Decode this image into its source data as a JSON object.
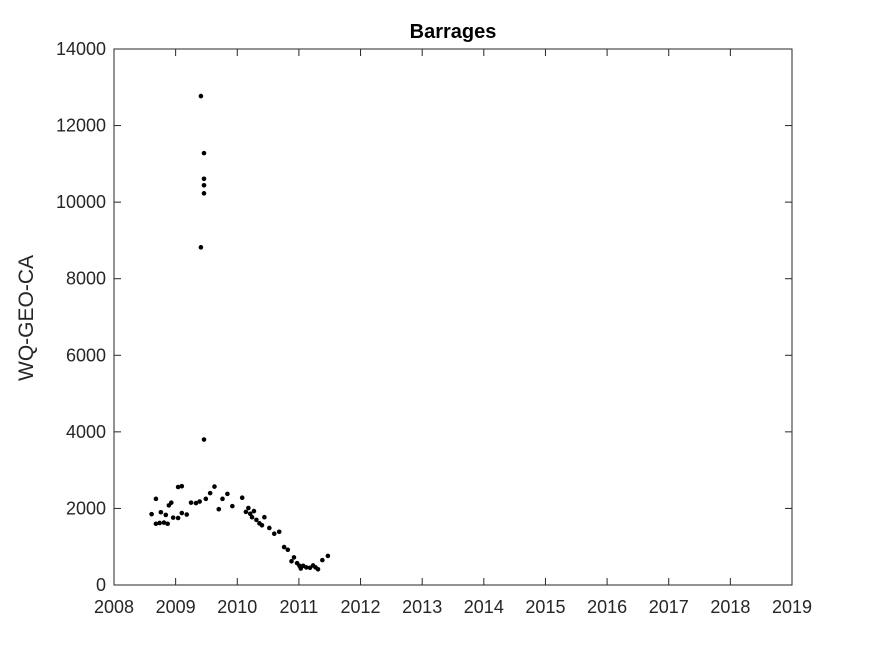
{
  "chart_data": {
    "type": "scatter",
    "title": "Barrages",
    "xlabel": "",
    "ylabel": "WQ-GEO-CA",
    "xlim": [
      2008,
      2019
    ],
    "ylim": [
      0,
      14000
    ],
    "x_ticks": [
      "2008",
      "2009",
      "2010",
      "2011",
      "2012",
      "2013",
      "2014",
      "2015",
      "2016",
      "2017",
      "2018",
      "2019"
    ],
    "y_ticks": [
      "0",
      "2000",
      "4000",
      "6000",
      "8000",
      "10000",
      "12000",
      "14000"
    ],
    "grid": false,
    "legend": "none",
    "marker_color": "#000000",
    "axes_color": "#262626",
    "series": [
      {
        "points": [
          [
            2008.61,
            1850
          ],
          [
            2008.68,
            2250
          ],
          [
            2008.68,
            1600
          ],
          [
            2008.74,
            1620
          ],
          [
            2008.76,
            1900
          ],
          [
            2008.81,
            1630
          ],
          [
            2008.84,
            1830
          ],
          [
            2008.87,
            1600
          ],
          [
            2008.89,
            2080
          ],
          [
            2008.93,
            2150
          ],
          [
            2008.96,
            1760
          ],
          [
            2009.04,
            1750
          ],
          [
            2009.04,
            2560
          ],
          [
            2009.1,
            2580
          ],
          [
            2009.1,
            1880
          ],
          [
            2009.18,
            1840
          ],
          [
            2009.25,
            2150
          ],
          [
            2009.33,
            2140
          ],
          [
            2009.39,
            2180
          ],
          [
            2009.41,
            12770
          ],
          [
            2009.41,
            8820
          ],
          [
            2009.46,
            11280
          ],
          [
            2009.46,
            10610
          ],
          [
            2009.46,
            10440
          ],
          [
            2009.46,
            10230
          ],
          [
            2009.46,
            3800
          ],
          [
            2009.49,
            2250
          ],
          [
            2009.56,
            2400
          ],
          [
            2009.63,
            2570
          ],
          [
            2009.7,
            1980
          ],
          [
            2009.76,
            2250
          ],
          [
            2009.84,
            2380
          ],
          [
            2009.92,
            2060
          ],
          [
            2010.08,
            2280
          ],
          [
            2010.14,
            1910
          ],
          [
            2010.18,
            2010
          ],
          [
            2010.21,
            1860
          ],
          [
            2010.24,
            1770
          ],
          [
            2010.27,
            1930
          ],
          [
            2010.31,
            1700
          ],
          [
            2010.36,
            1610
          ],
          [
            2010.4,
            1560
          ],
          [
            2010.44,
            1770
          ],
          [
            2010.52,
            1490
          ],
          [
            2010.6,
            1340
          ],
          [
            2010.68,
            1390
          ],
          [
            2010.76,
            990
          ],
          [
            2010.82,
            920
          ],
          [
            2010.88,
            620
          ],
          [
            2010.92,
            720
          ],
          [
            2010.97,
            570
          ],
          [
            2011.01,
            500
          ],
          [
            2011.03,
            430
          ],
          [
            2011.07,
            500
          ],
          [
            2011.12,
            460
          ],
          [
            2011.18,
            450
          ],
          [
            2011.23,
            510
          ],
          [
            2011.27,
            460
          ],
          [
            2011.31,
            410
          ],
          [
            2011.38,
            650
          ],
          [
            2011.47,
            760
          ]
        ]
      }
    ]
  }
}
